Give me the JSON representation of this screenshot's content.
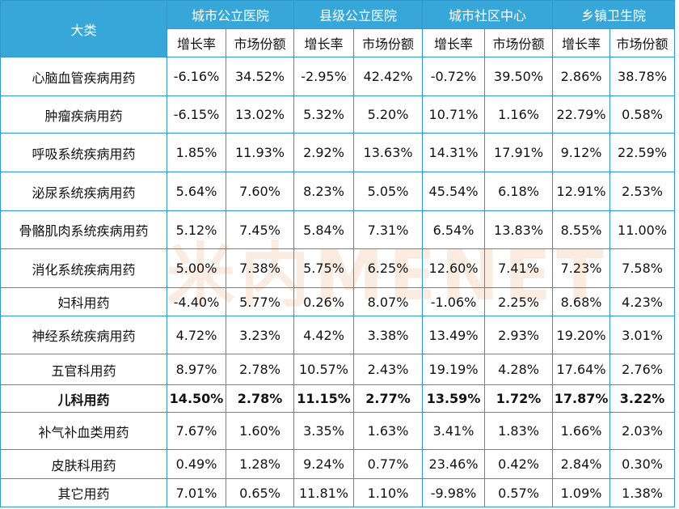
{
  "header": {
    "corner_label": "大类",
    "groups": [
      "城市公立医院",
      "县级公立医院",
      "城市社区中心",
      "乡镇卫生院"
    ],
    "sub": [
      "增长率",
      "市场份额"
    ]
  },
  "rows": [
    {
      "name": "心脑血管疾病用药",
      "values": [
        "-6.16%",
        "34.52%",
        "-2.95%",
        "42.42%",
        "-0.72%",
        "39.50%",
        "2.86%",
        "38.78%"
      ]
    },
    {
      "name": "肿瘤疾病用药",
      "values": [
        "-6.15%",
        "13.02%",
        "5.32%",
        "5.20%",
        "10.71%",
        "1.16%",
        "22.79%",
        "0.58%"
      ]
    },
    {
      "name": "呼吸系统疾病用药",
      "values": [
        "1.85%",
        "11.93%",
        "2.92%",
        "13.63%",
        "14.31%",
        "17.91%",
        "9.12%",
        "22.59%"
      ]
    },
    {
      "name": "泌尿系统疾病用药",
      "values": [
        "5.64%",
        "7.60%",
        "8.23%",
        "5.05%",
        "45.54%",
        "6.18%",
        "12.91%",
        "2.53%"
      ]
    },
    {
      "name": "骨骼肌肉系统疾病用药",
      "values": [
        "5.12%",
        "7.45%",
        "5.84%",
        "7.31%",
        "6.54%",
        "13.83%",
        "8.55%",
        "11.00%"
      ]
    },
    {
      "name": "消化系统疾病用药",
      "values": [
        "5.00%",
        "7.38%",
        "5.75%",
        "6.25%",
        "12.60%",
        "7.41%",
        "7.23%",
        "7.58%"
      ]
    },
    {
      "name": "妇科用药",
      "values": [
        "-4.40%",
        "5.77%",
        "0.26%",
        "8.07%",
        "-1.06%",
        "2.25%",
        "8.68%",
        "4.23%"
      ]
    },
    {
      "name": "神经系统疾病用药",
      "values": [
        "4.72%",
        "3.23%",
        "4.42%",
        "3.38%",
        "13.49%",
        "2.93%",
        "19.20%",
        "3.01%"
      ]
    },
    {
      "name": "五官科用药",
      "values": [
        "8.97%",
        "2.78%",
        "10.57%",
        "2.43%",
        "19.19%",
        "4.28%",
        "17.64%",
        "2.76%"
      ]
    },
    {
      "name": "儿科用药",
      "bold": true,
      "values": [
        "14.50%",
        "2.78%",
        "11.15%",
        "2.77%",
        "13.59%",
        "1.72%",
        "17.87%",
        "3.22%"
      ]
    },
    {
      "name": "补气补血类用药",
      "values": [
        "7.67%",
        "1.60%",
        "3.35%",
        "1.63%",
        "3.41%",
        "1.83%",
        "1.66%",
        "2.03%"
      ]
    },
    {
      "name": "皮肤科用药",
      "values": [
        "0.49%",
        "1.28%",
        "9.24%",
        "0.77%",
        "23.46%",
        "0.42%",
        "2.84%",
        "0.30%"
      ]
    },
    {
      "name": "其它用药",
      "values": [
        "7.01%",
        "0.65%",
        "11.81%",
        "1.10%",
        "-9.98%",
        "0.57%",
        "1.09%",
        "1.38%"
      ]
    }
  ],
  "colors": {
    "header_bg": "#36a7d8",
    "border": "#2f98cc",
    "watermark": "#e8965a"
  },
  "watermark": {
    "text": "米内MENET"
  }
}
